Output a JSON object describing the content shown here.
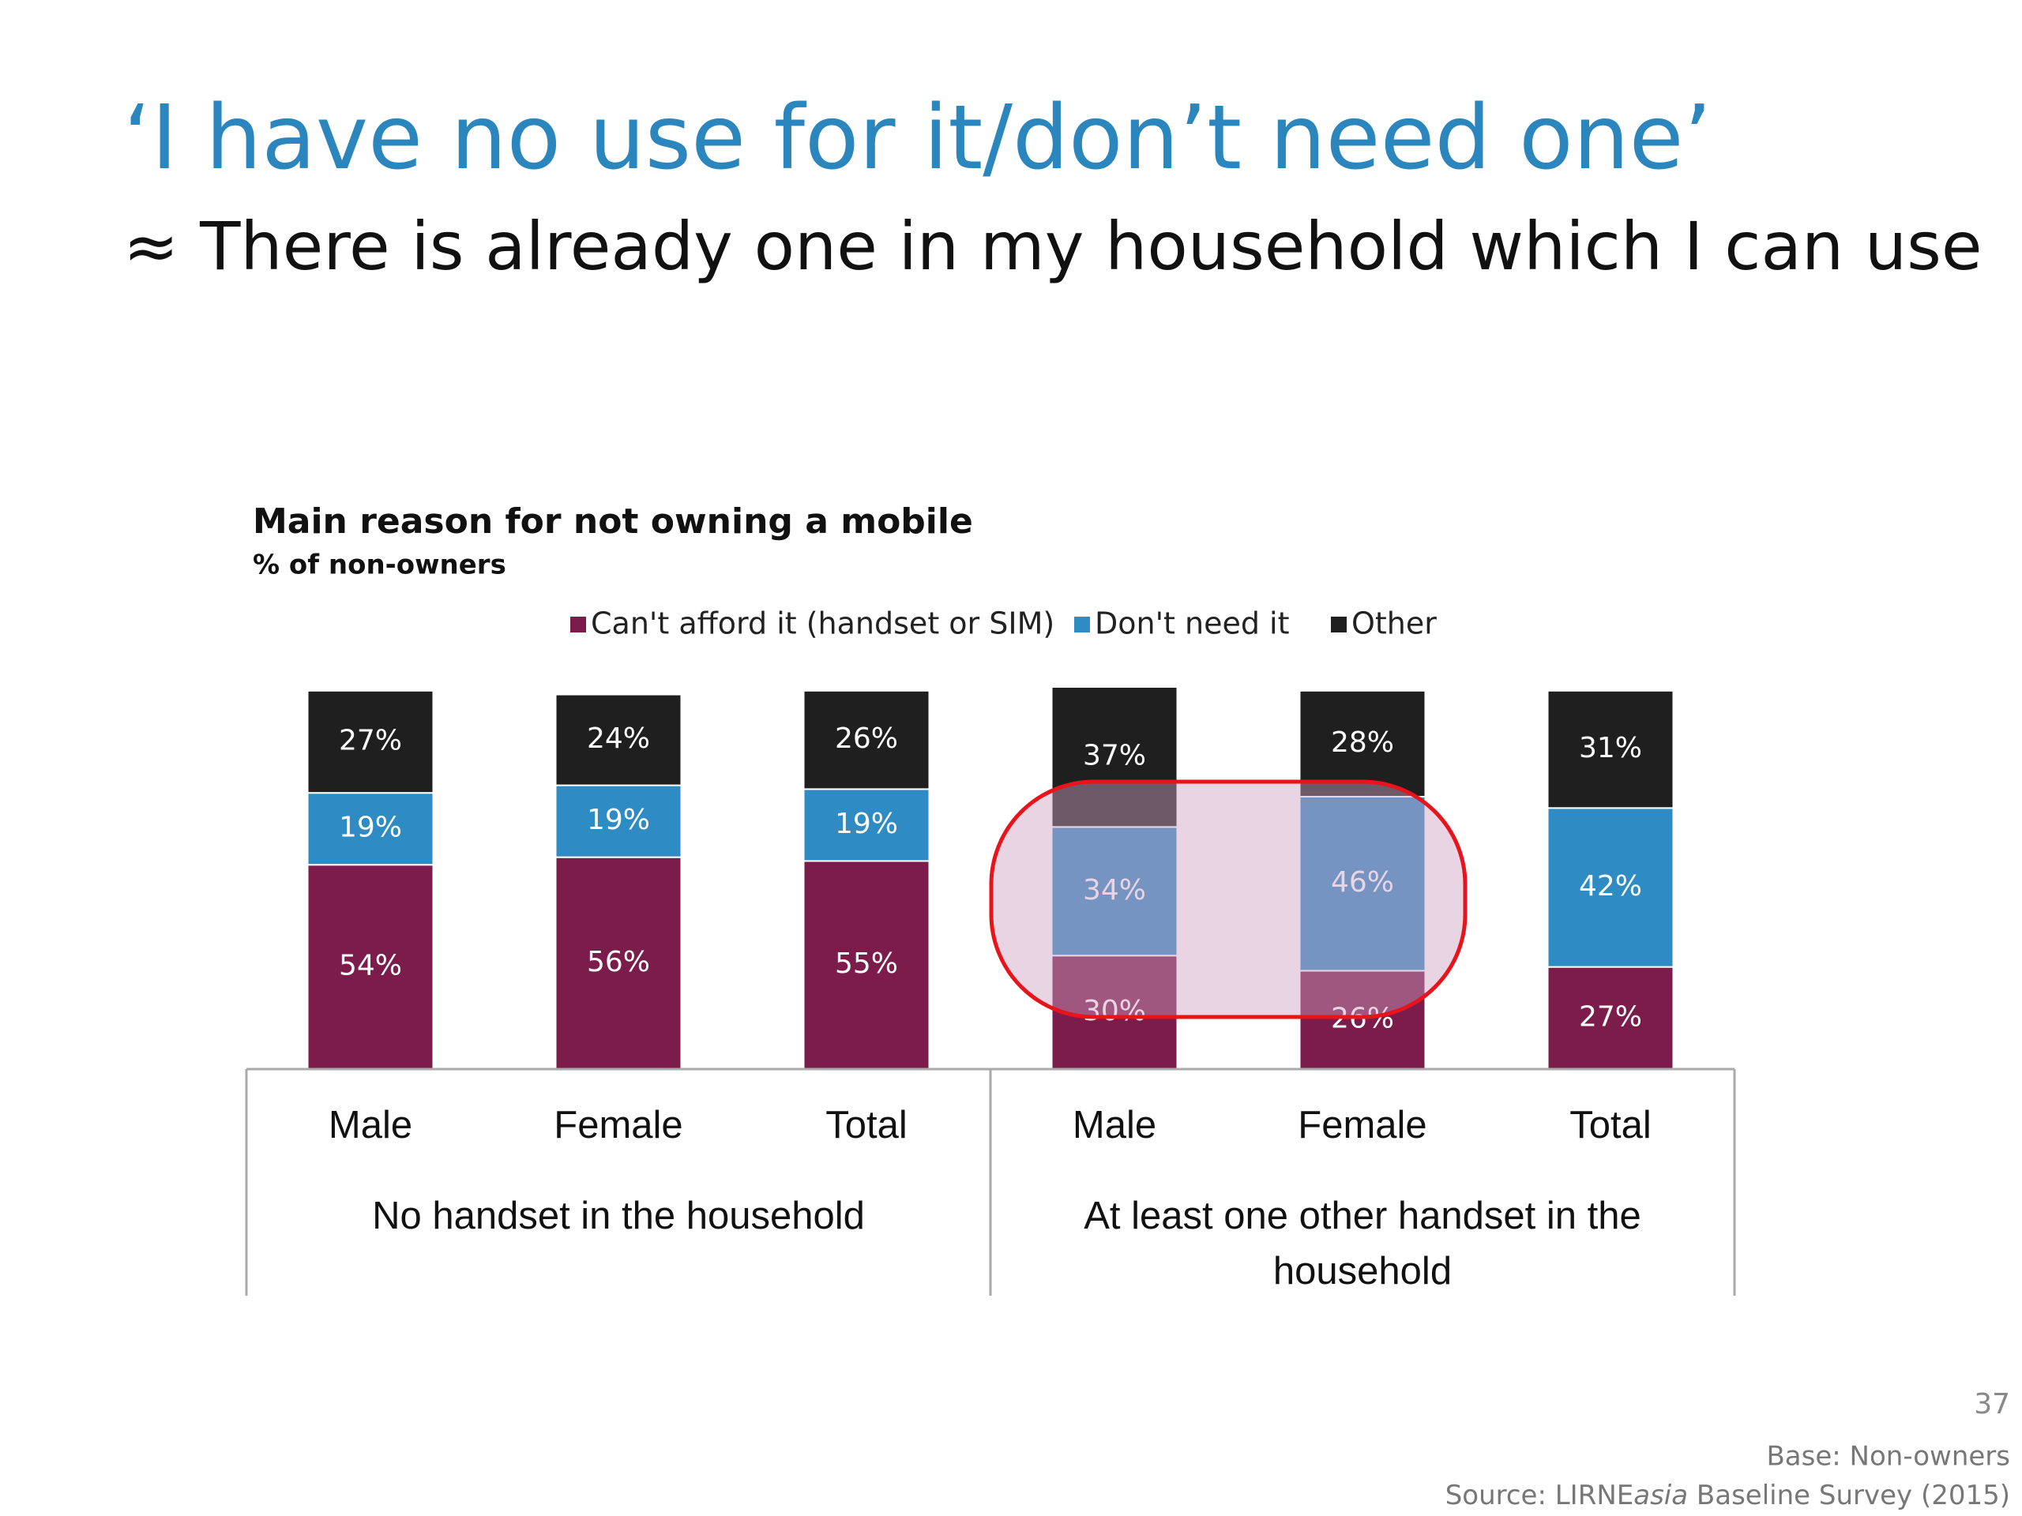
{
  "slide": {
    "title": "‘I have no use for it/don’t need one’",
    "subtitle": "≈ There is already one in my household which I can use",
    "page_number": "37",
    "base": "Base: Non-owners",
    "source": [
      "Source: LIRNE",
      "asia",
      "Baseline Survey (2015)"
    ]
  },
  "chart_data": {
    "type": "stacked-bar",
    "title": "Main reason for not owning a mobile",
    "subtitle": "% of non-owners",
    "categories": [
      "Male",
      "Female",
      "Total",
      "Male",
      "Female",
      "Total"
    ],
    "groups": [
      {
        "label": "No handset in the household",
        "size": 3
      },
      {
        "label": "At least one other handset in the household",
        "size": 3
      }
    ],
    "ylim": [
      0,
      101
    ],
    "legend": "top",
    "series": [
      {
        "name": "Can't afford it (handset or SIM)",
        "color": "#7b1c4b",
        "values": [
          54,
          56,
          55,
          30,
          26,
          27
        ],
        "value_labels": [
          "54%",
          "56%",
          "55%",
          "30%",
          "26%",
          "27%"
        ]
      },
      {
        "name": "Don't need it",
        "color": "#2e8bc4",
        "values": [
          19,
          19,
          19,
          34,
          46,
          42
        ],
        "value_labels": [
          "19%",
          "19%",
          "19%",
          "34%",
          "46%",
          "42%"
        ]
      },
      {
        "name": "Other",
        "color": "#1f1f1f",
        "values": [
          27,
          24,
          26,
          37,
          28,
          31
        ],
        "value_labels": [
          "27%",
          "24%",
          "26%",
          "37%",
          "28%",
          "31%"
        ]
      }
    ]
  }
}
